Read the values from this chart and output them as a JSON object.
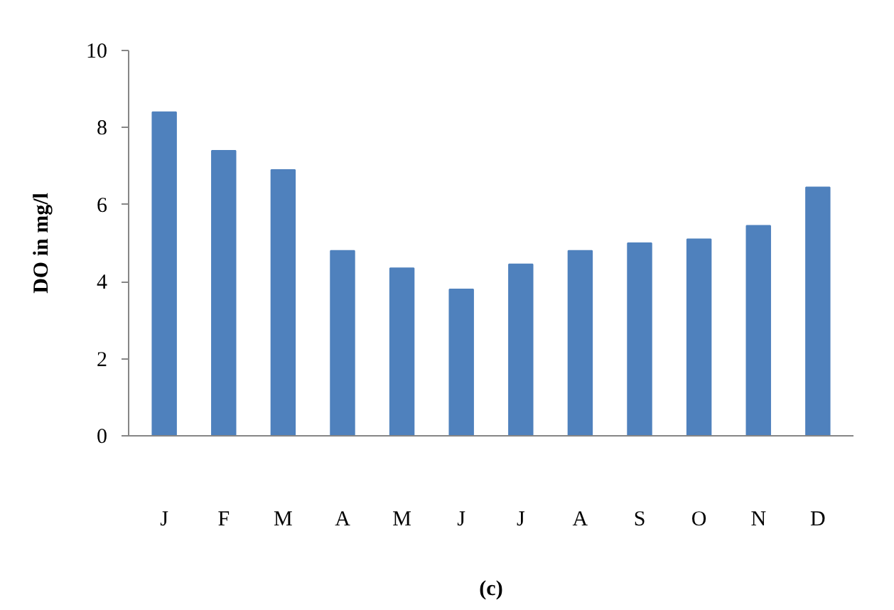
{
  "chart_data": {
    "type": "bar",
    "xlabel": "(c)",
    "ylabel": "DO in mg/l",
    "categories": [
      "J",
      "F",
      "M",
      "A",
      "M",
      "J",
      "J",
      "A",
      "S",
      "O",
      "N",
      "D"
    ],
    "values": [
      8.4,
      7.4,
      6.9,
      4.8,
      4.35,
      3.8,
      4.45,
      4.8,
      5.0,
      5.1,
      5.45,
      6.45
    ],
    "color": "#4f81bd",
    "ylim": [
      0,
      10
    ],
    "yticks": [
      0,
      2,
      4,
      6,
      8,
      10
    ],
    "grid": false
  }
}
